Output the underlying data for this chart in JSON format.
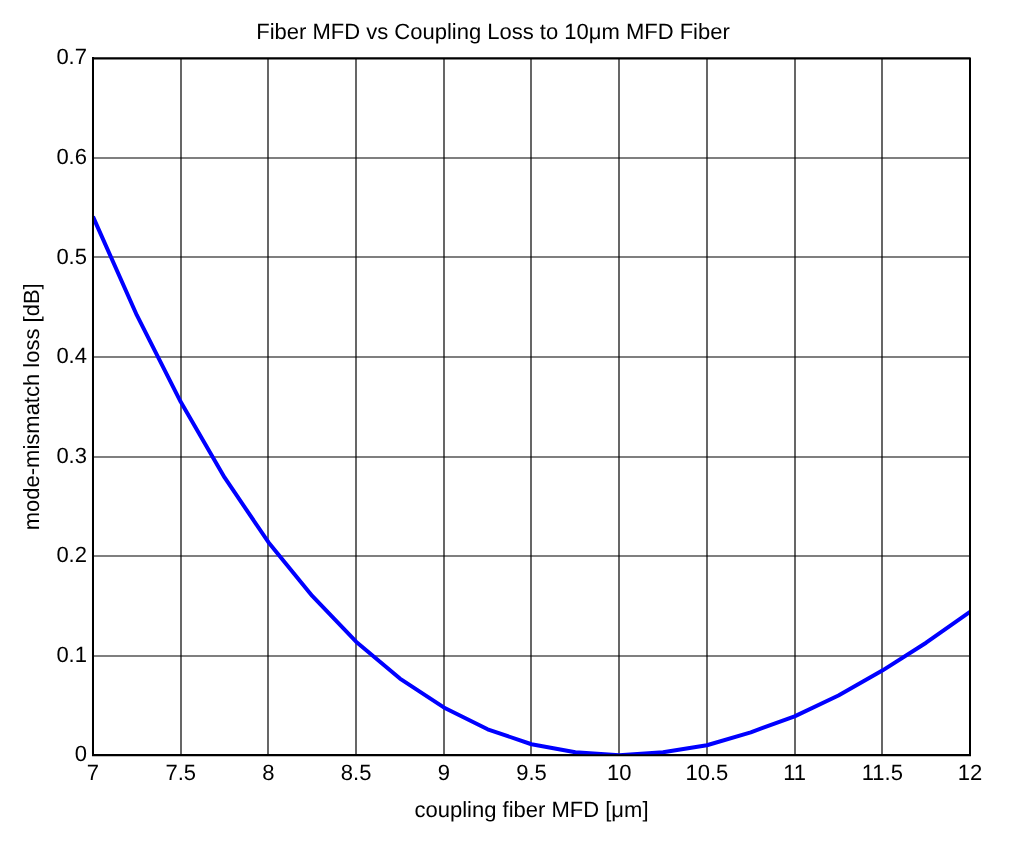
{
  "chart_data": {
    "type": "line",
    "title": "Fiber MFD vs Coupling Loss to 10μm MFD Fiber",
    "xlabel": "coupling fiber MFD [μm]",
    "ylabel": "mode-mismatch loss [dB]",
    "x": [
      7,
      7.25,
      7.5,
      7.75,
      8,
      8.25,
      8.5,
      8.75,
      9,
      9.25,
      9.5,
      9.75,
      10,
      10.25,
      10.5,
      10.75,
      11,
      11.25,
      11.5,
      11.75,
      12
    ],
    "series": [
      {
        "color": "#0000ff",
        "values": [
          0.541,
          0.442,
          0.355,
          0.279,
          0.214,
          0.16,
          0.114,
          0.077,
          0.048,
          0.026,
          0.011,
          0.003,
          0,
          0.003,
          0.01,
          0.023,
          0.039,
          0.06,
          0.085,
          0.113,
          0.144
        ]
      }
    ],
    "xlim": [
      7,
      12
    ],
    "xticks": [
      7,
      7.5,
      8,
      8.5,
      9,
      9.5,
      10,
      10.5,
      11,
      11.5,
      12
    ],
    "ylim": [
      0,
      0.7
    ],
    "yticks": [
      0,
      0.1,
      0.2,
      0.3,
      0.4,
      0.5,
      0.6,
      0.7
    ],
    "grid": true,
    "legend": false,
    "marker": "none",
    "line_style": "solid"
  }
}
